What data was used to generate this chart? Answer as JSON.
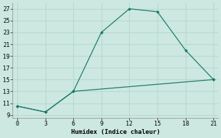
{
  "xlabel": "Humidex (Indice chaleur)",
  "bg_color": "#cce8e0",
  "line_color": "#1a7a6a",
  "grid_color": "#b8d8d0",
  "line1_x": [
    0,
    3,
    6,
    9,
    12,
    15,
    18,
    21
  ],
  "line1_y": [
    10.5,
    9.5,
    13,
    23,
    27,
    26.5,
    20,
    15
  ],
  "line2_x": [
    0,
    3,
    6,
    21
  ],
  "line2_y": [
    10.5,
    9.5,
    13,
    15
  ],
  "xlim": [
    -0.5,
    21.5
  ],
  "ylim": [
    8.5,
    28
  ],
  "xticks": [
    0,
    3,
    6,
    9,
    12,
    15,
    18,
    21
  ],
  "yticks": [
    9,
    11,
    13,
    15,
    17,
    19,
    21,
    23,
    25,
    27
  ]
}
